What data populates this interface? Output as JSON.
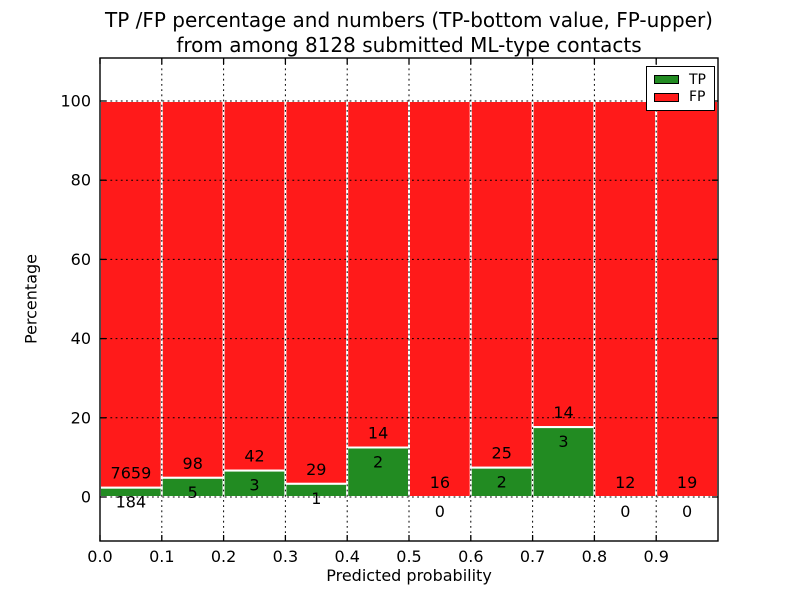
{
  "chart_data": {
    "type": "bar",
    "stacked": true,
    "title_line1": "TP /FP percentage and numbers (TP-bottom value, FP-upper)",
    "title_line2": "from among 8128 submitted ML-type contacts",
    "xlabel": "Predicted probability",
    "ylabel": "Percentage",
    "total_contacts": 8128,
    "x_ticks": [
      {
        "value": 0.0,
        "label": "0.0"
      },
      {
        "value": 0.1,
        "label": "0.1"
      },
      {
        "value": 0.2,
        "label": "0.2"
      },
      {
        "value": 0.3,
        "label": "0.3"
      },
      {
        "value": 0.4,
        "label": "0.4"
      },
      {
        "value": 0.5,
        "label": "0.5"
      },
      {
        "value": 0.6,
        "label": "0.6"
      },
      {
        "value": 0.7,
        "label": "0.7"
      },
      {
        "value": 0.8,
        "label": "0.8"
      },
      {
        "value": 0.9,
        "label": "0.9"
      }
    ],
    "y_ticks": [
      {
        "value": 0,
        "label": "0"
      },
      {
        "value": 20,
        "label": "20"
      },
      {
        "value": 40,
        "label": "40"
      },
      {
        "value": 60,
        "label": "60"
      },
      {
        "value": 80,
        "label": "80"
      },
      {
        "value": 100,
        "label": "100"
      }
    ],
    "xlim": [
      0.0,
      1.0
    ],
    "ylim": [
      -11,
      111
    ],
    "grid": {
      "visible": true,
      "style": "dotted",
      "color": "#000000"
    },
    "bins": [
      {
        "x_start": 0.0,
        "x_end": 0.1,
        "tp": 184,
        "fp": 7659,
        "tp_percent": 2.35
      },
      {
        "x_start": 0.1,
        "x_end": 0.2,
        "tp": 5,
        "fp": 98,
        "tp_percent": 4.85
      },
      {
        "x_start": 0.2,
        "x_end": 0.3,
        "tp": 3,
        "fp": 42,
        "tp_percent": 6.67
      },
      {
        "x_start": 0.3,
        "x_end": 0.4,
        "tp": 1,
        "fp": 29,
        "tp_percent": 3.33
      },
      {
        "x_start": 0.4,
        "x_end": 0.5,
        "tp": 2,
        "fp": 14,
        "tp_percent": 12.5
      },
      {
        "x_start": 0.5,
        "x_end": 0.6,
        "tp": 0,
        "fp": 16,
        "tp_percent": 0
      },
      {
        "x_start": 0.6,
        "x_end": 0.7,
        "tp": 2,
        "fp": 25,
        "tp_percent": 7.41
      },
      {
        "x_start": 0.7,
        "x_end": 0.8,
        "tp": 3,
        "fp": 14,
        "tp_percent": 17.65
      },
      {
        "x_start": 0.8,
        "x_end": 0.9,
        "tp": 0,
        "fp": 12,
        "tp_percent": 0
      },
      {
        "x_start": 0.9,
        "x_end": 1.0,
        "tp": 0,
        "fp": 19,
        "tp_percent": 0
      }
    ],
    "series": [
      {
        "name": "TP",
        "color": "#228B22"
      },
      {
        "name": "FP",
        "color": "#FF1A1A"
      }
    ],
    "legend": {
      "position": "upper-right",
      "entries": [
        {
          "label": "TP",
          "color": "#228B22"
        },
        {
          "label": "FP",
          "color": "#FF1A1A"
        }
      ]
    },
    "colors": {
      "tp_green": "#228B22",
      "fp_red": "#FF1A1A",
      "bar_edge": "#FFFFFF",
      "background": "#FFFFFF",
      "text": "#000000",
      "axis": "#000000"
    }
  }
}
